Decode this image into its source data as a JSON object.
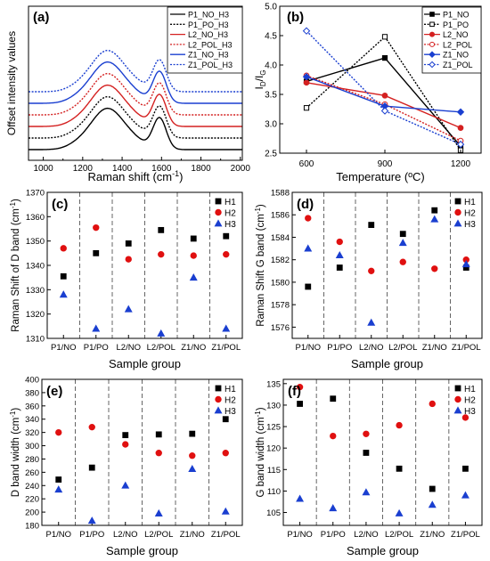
{
  "chart_data": [
    {
      "id": "a",
      "type": "line",
      "panel_label": "(a)",
      "xlabel": "Raman shift (cm",
      "xlabel_sup": "-1",
      "xlabel_end": ")",
      "ylabel": "Offset intensity values",
      "xlim": [
        925,
        2010
      ],
      "xticks": [
        "1000",
        "1200",
        "1400",
        "1600",
        "1800",
        "2000"
      ],
      "legend_position": "top-right",
      "series": [
        {
          "name": "P1_NO_H3",
          "color": "#000000",
          "dash": "solid",
          "offset": 0.0
        },
        {
          "name": "P1_PO_H3",
          "color": "#000000",
          "dash": "dotted",
          "offset": 0.45
        },
        {
          "name": "L2_NO_H3",
          "color": "#d42020",
          "dash": "solid",
          "offset": 0.9
        },
        {
          "name": "L2_POL_H3",
          "color": "#d42020",
          "dash": "dotted",
          "offset": 1.35
        },
        {
          "name": "Z1_NO_H3",
          "color": "#1a3fd0",
          "dash": "solid",
          "offset": 1.8
        },
        {
          "name": "Z1_POL_H3",
          "color": "#1a3fd0",
          "dash": "dotted",
          "offset": 2.25
        }
      ]
    },
    {
      "id": "b",
      "type": "line",
      "panel_label": "(b)",
      "xlabel": "Temperature (ºC)",
      "ylabel": "I",
      "ylabel_sub1": "D",
      "ylabel_mid": "/I",
      "ylabel_sub2": "G",
      "categories": [
        "600",
        "900",
        "1200"
      ],
      "ylim": [
        2.5,
        5.0
      ],
      "yticks": [
        "2.5",
        "3.0",
        "3.5",
        "4.0",
        "4.5",
        "5.0"
      ],
      "legend_position": "top-right",
      "series": [
        {
          "name": "P1_NO",
          "color": "#000000",
          "dash": "solid",
          "marker": "square-filled",
          "values": [
            3.72,
            4.12,
            2.62
          ]
        },
        {
          "name": "P1_PO",
          "color": "#000000",
          "dash": "dotted",
          "marker": "square-open",
          "values": [
            3.27,
            4.48,
            2.55
          ]
        },
        {
          "name": "L2_NO",
          "color": "#d42020",
          "dash": "solid",
          "marker": "circle-filled",
          "values": [
            3.7,
            3.48,
            2.93
          ]
        },
        {
          "name": "L2_POL",
          "color": "#d42020",
          "dash": "dotted",
          "marker": "circle-open",
          "values": [
            3.82,
            3.33,
            2.71
          ]
        },
        {
          "name": "Z1_NO",
          "color": "#1a3fd0",
          "dash": "solid",
          "marker": "diamond-filled",
          "values": [
            3.8,
            3.3,
            3.2
          ]
        },
        {
          "name": "Z1_POL",
          "color": "#1a3fd0",
          "dash": "dotted",
          "marker": "diamond-open",
          "values": [
            4.58,
            3.22,
            2.65
          ]
        }
      ]
    },
    {
      "id": "c",
      "type": "scatter",
      "panel_label": "(c)",
      "xlabel": "Sample group",
      "ylabel": "Raman Shift of D band (cm",
      "ylabel_sup": "-1",
      "ylabel_end": ")",
      "categories": [
        "P1/NO",
        "P1/PO",
        "L2/NO",
        "L2/POL",
        "Z1/NO",
        "Z1/POL"
      ],
      "ylim": [
        1310,
        1370
      ],
      "yticks": [
        "1310",
        "1320",
        "1330",
        "1340",
        "1350",
        "1360",
        "1370"
      ],
      "legend_position": "top-right",
      "series": [
        {
          "name": "H1",
          "color": "#000000",
          "marker": "square",
          "values": [
            1335.5,
            1345,
            1349,
            1354.5,
            1351,
            1352
          ]
        },
        {
          "name": "H2",
          "color": "#e01010",
          "marker": "circle",
          "values": [
            1347,
            1355.5,
            1342.5,
            1344.5,
            1344,
            1344.5
          ]
        },
        {
          "name": "H3",
          "color": "#1a3fd0",
          "marker": "triangle",
          "values": [
            1328,
            1314,
            1322,
            1312,
            1335,
            1314
          ]
        }
      ]
    },
    {
      "id": "d",
      "type": "scatter",
      "panel_label": "(d)",
      "xlabel": "Sample group",
      "ylabel": "Raman Shift G band (cm",
      "ylabel_sup": "-1",
      "ylabel_end": ")",
      "categories": [
        "P1/NO",
        "P1/PO",
        "L2/NO",
        "L2/POL",
        "Z1/NO",
        "Z1/POL"
      ],
      "ylim": [
        1575,
        1588
      ],
      "yticks": [
        "1576",
        "1578",
        "1580",
        "1582",
        "1584",
        "1586",
        "1588"
      ],
      "legend_position": "top-right",
      "series": [
        {
          "name": "H1",
          "color": "#000000",
          "marker": "square",
          "values": [
            1579.6,
            1581.3,
            1585.1,
            1584.3,
            1586.4,
            1581.3
          ]
        },
        {
          "name": "H2",
          "color": "#e01010",
          "marker": "circle",
          "values": [
            1585.7,
            1583.6,
            1581.0,
            1581.8,
            1581.2,
            1582.0
          ]
        },
        {
          "name": "H3",
          "color": "#1a3fd0",
          "marker": "triangle",
          "values": [
            1583.0,
            1582.4,
            1576.4,
            1583.5,
            1585.6,
            1581.6
          ]
        }
      ]
    },
    {
      "id": "e",
      "type": "scatter",
      "panel_label": "(e)",
      "xlabel": "Sample group",
      "ylabel": "D band width (cm",
      "ylabel_sup": "-1",
      "ylabel_end": ")",
      "categories": [
        "P1/NO",
        "P1/PO",
        "L2/NO",
        "L2/POL",
        "Z1/NO",
        "Z1/POL"
      ],
      "ylim": [
        180,
        400
      ],
      "yticks": [
        "180",
        "200",
        "220",
        "240",
        "260",
        "280",
        "300",
        "320",
        "340",
        "360",
        "380",
        "400"
      ],
      "legend_position": "top-right",
      "series": [
        {
          "name": "H1",
          "color": "#000000",
          "marker": "square",
          "values": [
            249,
            267,
            316,
            317,
            318,
            340
          ]
        },
        {
          "name": "H2",
          "color": "#e01010",
          "marker": "circle",
          "values": [
            320,
            328,
            302,
            289,
            285,
            289
          ]
        },
        {
          "name": "H3",
          "color": "#1a3fd0",
          "marker": "triangle",
          "values": [
            234,
            187,
            240,
            198,
            265,
            201
          ]
        }
      ]
    },
    {
      "id": "f",
      "type": "scatter",
      "panel_label": "(f)",
      "xlabel": "Sample group",
      "ylabel": "G band width (cm",
      "ylabel_sup": "-1",
      "ylabel_end": ")",
      "categories": [
        "P1/NO",
        "P1/PO",
        "L2/NO",
        "L2/POL",
        "Z1/NO",
        "Z1/POL"
      ],
      "ylim": [
        102,
        136
      ],
      "yticks": [
        "105",
        "110",
        "115",
        "120",
        "125",
        "130",
        "135"
      ],
      "legend_position": "top-right",
      "series": [
        {
          "name": "H1",
          "color": "#000000",
          "marker": "square",
          "values": [
            130.3,
            131.5,
            118.9,
            115.2,
            110.5,
            115.2
          ]
        },
        {
          "name": "H2",
          "color": "#e01010",
          "marker": "circle",
          "values": [
            134.2,
            122.8,
            123.3,
            125.3,
            130.3,
            127.1
          ]
        },
        {
          "name": "H3",
          "color": "#1a3fd0",
          "marker": "triangle",
          "values": [
            108.2,
            106.0,
            109.7,
            104.8,
            106.8,
            109.0
          ]
        }
      ]
    }
  ]
}
